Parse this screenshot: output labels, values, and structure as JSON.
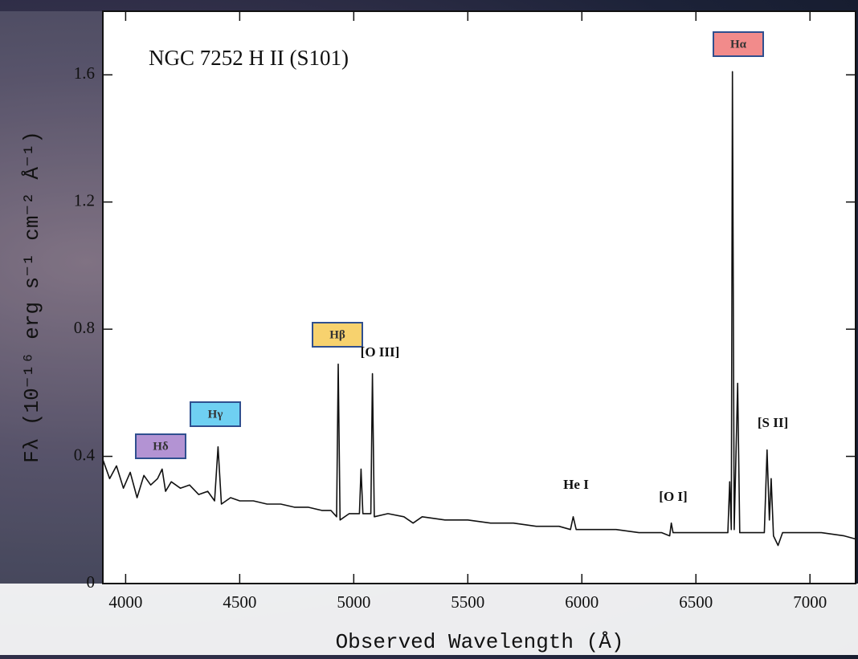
{
  "chart_data": {
    "type": "line",
    "title": "NGC 7252  H II (S101)",
    "x_label": "Observed Wavelength (Å)",
    "y_label": "Fλ (10⁻¹⁶ erg s⁻¹ cm⁻² Å⁻¹)",
    "x": [
      3900,
      3930,
      3960,
      3990,
      4020,
      4050,
      4080,
      4110,
      4140,
      4160,
      4175,
      4200,
      4240,
      4280,
      4320,
      4360,
      4390,
      4405,
      4420,
      4460,
      4500,
      4560,
      4620,
      4680,
      4740,
      4800,
      4860,
      4900,
      4925,
      4932,
      4940,
      4980,
      5025,
      5032,
      5040,
      5075,
      5082,
      5090,
      5150,
      5220,
      5260,
      5300,
      5400,
      5500,
      5600,
      5700,
      5800,
      5900,
      5950,
      5962,
      5975,
      6050,
      6150,
      6250,
      6350,
      6385,
      6392,
      6400,
      6450,
      6500,
      6550,
      6600,
      6640,
      6648,
      6655,
      6660,
      6668,
      6683,
      6692,
      6750,
      6800,
      6812,
      6822,
      6830,
      6840,
      6860,
      6880,
      6950,
      7050,
      7150,
      7200
    ],
    "series": [
      {
        "color": "#111111",
        "values": [
          0.39,
          0.33,
          0.37,
          0.3,
          0.35,
          0.27,
          0.34,
          0.31,
          0.33,
          0.36,
          0.29,
          0.32,
          0.3,
          0.31,
          0.28,
          0.29,
          0.26,
          0.43,
          0.25,
          0.27,
          0.26,
          0.26,
          0.25,
          0.25,
          0.24,
          0.24,
          0.23,
          0.23,
          0.21,
          0.69,
          0.2,
          0.22,
          0.22,
          0.36,
          0.22,
          0.22,
          0.66,
          0.21,
          0.22,
          0.21,
          0.19,
          0.21,
          0.2,
          0.2,
          0.19,
          0.19,
          0.18,
          0.18,
          0.17,
          0.21,
          0.17,
          0.17,
          0.17,
          0.16,
          0.16,
          0.15,
          0.19,
          0.16,
          0.16,
          0.16,
          0.16,
          0.16,
          0.16,
          0.32,
          0.17,
          1.61,
          0.17,
          0.63,
          0.16,
          0.16,
          0.16,
          0.42,
          0.2,
          0.33,
          0.15,
          0.12,
          0.16,
          0.16,
          0.16,
          0.15,
          0.14
        ]
      }
    ],
    "xlim": [
      3900,
      7200
    ],
    "ylim": [
      0,
      1.8
    ],
    "xticks": [
      4000,
      4500,
      5000,
      5500,
      6000,
      6500,
      7000
    ],
    "yticks": [
      0,
      0.4,
      0.8,
      1.2,
      1.6
    ],
    "annotations": [
      {
        "text": "Hα",
        "color": "#f28b8b"
      },
      {
        "text": "Hβ",
        "color": "#f7d26e"
      },
      {
        "text": "[O III]"
      },
      {
        "text": "Hγ",
        "color": "#6fd0f2"
      },
      {
        "text": "Hδ",
        "color": "#b393d3"
      },
      {
        "text": "He I"
      },
      {
        "text": "[O I]"
      },
      {
        "text": "[S II]"
      }
    ]
  }
}
